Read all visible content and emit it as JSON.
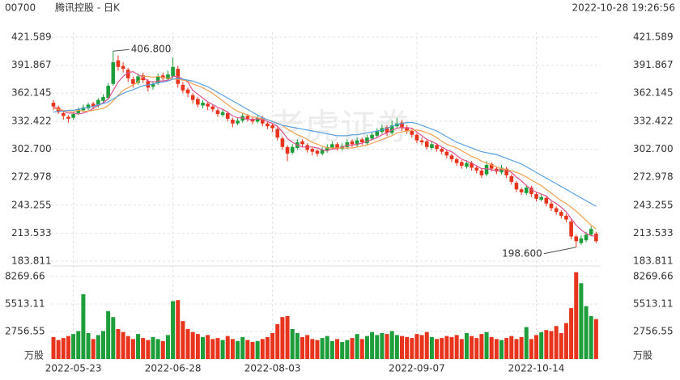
{
  "header": {
    "code": "00700",
    "name": "腾讯控股 - 日K",
    "time": "2022-10-28 19:26:56"
  },
  "chart_data": {
    "type": "candlestick",
    "watermark": "老虎证券",
    "up_color": "#1e9e3a",
    "down_color": "#e8341c",
    "ylim": [
      183.811,
      421.589
    ],
    "yticks": [
      183.811,
      213.533,
      243.255,
      272.978,
      {
        "value": 302.7,
        "label": "302.700"
      },
      332.422,
      362.145,
      391.867,
      421.589
    ],
    "volume_ylim": [
      0,
      8756
    ],
    "volume_yticks": [
      2756.55,
      5513.11,
      8269.66
    ],
    "volume_unit": "万股",
    "annotations": [
      {
        "text": "406.800",
        "index": 12,
        "value": 406.8
      },
      {
        "text": "198.600",
        "index": 105,
        "value": 198.6
      }
    ],
    "categories": [
      null,
      null,
      null,
      null,
      "2022-05-23",
      null,
      null,
      null,
      null,
      null,
      null,
      null,
      null,
      null,
      null,
      null,
      null,
      null,
      null,
      null,
      null,
      null,
      null,
      null,
      "2022-06-28",
      null,
      null,
      null,
      null,
      null,
      null,
      null,
      null,
      null,
      null,
      null,
      null,
      null,
      null,
      null,
      null,
      null,
      null,
      null,
      "2022-08-03",
      null,
      null,
      null,
      null,
      null,
      null,
      null,
      null,
      null,
      null,
      null,
      null,
      null,
      null,
      null,
      null,
      null,
      null,
      null,
      null,
      null,
      null,
      null,
      null,
      null,
      null,
      null,
      null,
      "2022-09-07",
      null,
      null,
      null,
      null,
      null,
      null,
      null,
      null,
      null,
      null,
      null,
      null,
      null,
      null,
      null,
      null,
      null,
      null,
      null,
      null,
      null,
      null,
      null,
      "2022-10-14",
      null,
      null,
      null,
      null,
      null,
      null,
      null,
      null,
      null,
      null,
      null,
      null
    ],
    "candles": [
      [
        352,
        355,
        344,
        348
      ],
      [
        347,
        349,
        340,
        342
      ],
      [
        341,
        343,
        334,
        338
      ],
      [
        337,
        339,
        331,
        335
      ],
      [
        336,
        342,
        334,
        340
      ],
      [
        341,
        347,
        339,
        345
      ],
      [
        344,
        350,
        342,
        347
      ],
      [
        346,
        352,
        344,
        350
      ],
      [
        351,
        353,
        345,
        348
      ],
      [
        349,
        357,
        347,
        355
      ],
      [
        354,
        361,
        352,
        358
      ],
      [
        357,
        373,
        355,
        370
      ],
      [
        372,
        406.8,
        370,
        395
      ],
      [
        397,
        402,
        386,
        390
      ],
      [
        391,
        395,
        384,
        388
      ],
      [
        387,
        389,
        374,
        378
      ],
      [
        377,
        380,
        368,
        372
      ],
      [
        373,
        383,
        371,
        380
      ],
      [
        381,
        384,
        373,
        376
      ],
      [
        375,
        377,
        364,
        368
      ],
      [
        369,
        375,
        366,
        372
      ],
      [
        373,
        383,
        371,
        380
      ],
      [
        381,
        384,
        375,
        378
      ],
      [
        377,
        386,
        375,
        382
      ],
      [
        380,
        400,
        378,
        390
      ],
      [
        388,
        391,
        368,
        372
      ],
      [
        371,
        374,
        362,
        365
      ],
      [
        366,
        368,
        358,
        362
      ],
      [
        360,
        362,
        351,
        355
      ],
      [
        356,
        358,
        347,
        350
      ],
      [
        349,
        355,
        346,
        352
      ],
      [
        351,
        353,
        344,
        348
      ],
      [
        348,
        350,
        342,
        345
      ],
      [
        344,
        346,
        337,
        340
      ],
      [
        339,
        345,
        337,
        342
      ],
      [
        341,
        343,
        332,
        335
      ],
      [
        334,
        336,
        326,
        330
      ],
      [
        330,
        336,
        328,
        333
      ],
      [
        333,
        341,
        331,
        338
      ],
      [
        338,
        340,
        332,
        335
      ],
      [
        335,
        337,
        329,
        332
      ],
      [
        332,
        339,
        330,
        336
      ],
      [
        336,
        338,
        327,
        330
      ],
      [
        330,
        332,
        324,
        327
      ],
      [
        328,
        330,
        321,
        325
      ],
      [
        324,
        326,
        312,
        315
      ],
      [
        314,
        316,
        302,
        305
      ],
      [
        305,
        307,
        290,
        298
      ],
      [
        299,
        308,
        297,
        305
      ],
      [
        304,
        313,
        302,
        310
      ],
      [
        311,
        313,
        305,
        308
      ],
      [
        307,
        309,
        299,
        302
      ],
      [
        303,
        305,
        296,
        300
      ],
      [
        301,
        303,
        295,
        298
      ],
      [
        298,
        305,
        296,
        302
      ],
      [
        301,
        308,
        299,
        305
      ],
      [
        304,
        311,
        302,
        308
      ],
      [
        308,
        310,
        301,
        304
      ],
      [
        303,
        309,
        301,
        306
      ],
      [
        305,
        313,
        303,
        310
      ],
      [
        311,
        313,
        305,
        308
      ],
      [
        307,
        315,
        305,
        312
      ],
      [
        313,
        315,
        307,
        310
      ],
      [
        309,
        318,
        307,
        315
      ],
      [
        314,
        321,
        312,
        318
      ],
      [
        317,
        325,
        315,
        322
      ],
      [
        321,
        329,
        319,
        325
      ],
      [
        326,
        328,
        317,
        320
      ],
      [
        320,
        333,
        318,
        328
      ],
      [
        327,
        336,
        325,
        330
      ],
      [
        331,
        334,
        322,
        325
      ],
      [
        326,
        328,
        319,
        322
      ],
      [
        322,
        324,
        315,
        318
      ],
      [
        318,
        320,
        309,
        312
      ],
      [
        312,
        315,
        307,
        310
      ],
      [
        311,
        313,
        302,
        305
      ],
      [
        304,
        311,
        302,
        308
      ],
      [
        307,
        309,
        300,
        303
      ],
      [
        303,
        305,
        297,
        300
      ],
      [
        300,
        302,
        293,
        296
      ],
      [
        296,
        298,
        289,
        292
      ],
      [
        292,
        294,
        285,
        288
      ],
      [
        289,
        291,
        282,
        285
      ],
      [
        284,
        291,
        282,
        288
      ],
      [
        288,
        290,
        280,
        283
      ],
      [
        283,
        285,
        277,
        280
      ],
      [
        280,
        282,
        272,
        275
      ],
      [
        276,
        290,
        274,
        286
      ],
      [
        287,
        289,
        279,
        282
      ],
      [
        282,
        284,
        276,
        279
      ],
      [
        278,
        286,
        276,
        283
      ],
      [
        282,
        284,
        272,
        275
      ],
      [
        274,
        276,
        265,
        268
      ],
      [
        267,
        269,
        257,
        260
      ],
      [
        260,
        262,
        254,
        257
      ],
      [
        256,
        265,
        254,
        262
      ],
      [
        262,
        264,
        252,
        255
      ],
      [
        255,
        257,
        247,
        250
      ],
      [
        249,
        255,
        247,
        252
      ],
      [
        251,
        253,
        242,
        245
      ],
      [
        245,
        247,
        237,
        240
      ],
      [
        240,
        242,
        233,
        236
      ],
      [
        236,
        238,
        229,
        232
      ],
      [
        232,
        234,
        225,
        228
      ],
      [
        226,
        228,
        207,
        210
      ],
      [
        210,
        212,
        198.6,
        205
      ],
      [
        203,
        211,
        201,
        208
      ],
      [
        206,
        215,
        204,
        212
      ],
      [
        212,
        221,
        210,
        218
      ],
      [
        213,
        215,
        203,
        205
      ]
    ],
    "volume": [
      2200,
      1900,
      2100,
      2300,
      2500,
      2800,
      6500,
      2600,
      2000,
      2400,
      2800,
      4800,
      4200,
      3000,
      2700,
      2300,
      2000,
      2500,
      2100,
      1900,
      2200,
      2000,
      1800,
      2400,
      5800,
      5900,
      3800,
      3000,
      2700,
      2500,
      2200,
      2400,
      2000,
      2100,
      1900,
      2300,
      2000,
      1800,
      2200,
      1900,
      1700,
      1800,
      2000,
      2200,
      2600,
      3500,
      4200,
      4300,
      3000,
      2600,
      2200,
      2400,
      2000,
      1900,
      2100,
      2300,
      1800,
      2000,
      1700,
      1900,
      2100,
      2500,
      2000,
      2300,
      2700,
      2400,
      2600,
      2500,
      2800,
      2400,
      2300,
      2200,
      2100,
      2500,
      2400,
      2700,
      2200,
      2000,
      2100,
      2300,
      2200,
      2400,
      2000,
      2600,
      2300,
      2100,
      2500,
      2700,
      2200,
      2000,
      1900,
      2100,
      2300,
      2000,
      2200,
      3200,
      2000,
      2400,
      2700,
      2900,
      2800,
      3300,
      2600,
      3600,
      5100,
      8700,
      7600,
      5300,
      4300,
      4000
    ],
    "ma_lines": [
      {
        "color": "#e0528f",
        "values": [
          348,
          345,
          343,
          341,
          341,
          340,
          341,
          343,
          346,
          349,
          352,
          356,
          365,
          374,
          380,
          384,
          385,
          382,
          379,
          375,
          374,
          375,
          375,
          376,
          380,
          380,
          377,
          374,
          365,
          361,
          357,
          353,
          350,
          347,
          345,
          342,
          338,
          336,
          336,
          334,
          334,
          335,
          334,
          332,
          330,
          327,
          321,
          314,
          310,
          307,
          305,
          305,
          305,
          304,
          302,
          301,
          303,
          303,
          305,
          307,
          307,
          308,
          309,
          311,
          313,
          315,
          318,
          320,
          323,
          325,
          326,
          325,
          325,
          321,
          317,
          313,
          311,
          308,
          305,
          302,
          300,
          296,
          292,
          290,
          288,
          285,
          282,
          282,
          281,
          280,
          281,
          281,
          278,
          273,
          269,
          264,
          260,
          257,
          255,
          253,
          248,
          245,
          241,
          236,
          229,
          222,
          217,
          213,
          211,
          210
        ]
      },
      {
        "color": "#f0a050",
        "values": [
          346,
          345,
          344,
          343,
          342,
          344,
          343,
          343,
          344,
          345,
          346,
          349,
          354,
          360,
          365,
          368,
          371,
          374,
          380,
          380,
          379,
          380,
          379,
          378,
          377,
          377,
          376,
          375,
          372,
          370,
          368,
          365,
          362,
          358,
          354,
          350,
          346,
          343,
          341,
          339,
          337,
          336,
          335,
          334,
          332,
          330,
          328,
          324,
          321,
          318,
          316,
          313,
          310,
          308,
          306,
          304,
          304,
          304,
          304,
          304,
          304,
          305,
          306,
          307,
          309,
          311,
          313,
          315,
          317,
          320,
          321,
          322,
          323,
          323,
          322,
          320,
          318,
          315,
          311,
          308,
          306,
          304,
          301,
          298,
          295,
          293,
          290,
          288,
          286,
          284,
          282,
          281,
          280,
          278,
          276,
          273,
          270,
          267,
          264,
          260,
          256,
          252,
          248,
          245,
          241,
          237,
          232,
          227,
          222,
          218
        ]
      },
      {
        "color": "#5aa0e0",
        "values": [
          342,
          343,
          343,
          344,
          344,
          345,
          346,
          347,
          348,
          350,
          351,
          353,
          356,
          359,
          362,
          364,
          366,
          368,
          370,
          371,
          372,
          373,
          374,
          375,
          377,
          378,
          377,
          376,
          375,
          373,
          371,
          369,
          366,
          363,
          360,
          357,
          354,
          351,
          348,
          345,
          342,
          339,
          336,
          334,
          332,
          330,
          328,
          327,
          326,
          325,
          324,
          323,
          322,
          321,
          320,
          319,
          318,
          317,
          317,
          317,
          318,
          318,
          319,
          320,
          321,
          322,
          323,
          325,
          327,
          329,
          330,
          331,
          331,
          330,
          328,
          326,
          324,
          322,
          319,
          316,
          313,
          310,
          308,
          306,
          304,
          302,
          300,
          299,
          298,
          297,
          295,
          293,
          291,
          289,
          287,
          284,
          281,
          278,
          275,
          272,
          269,
          266,
          263,
          260,
          257,
          254,
          251,
          248,
          245,
          242
        ]
      }
    ]
  }
}
